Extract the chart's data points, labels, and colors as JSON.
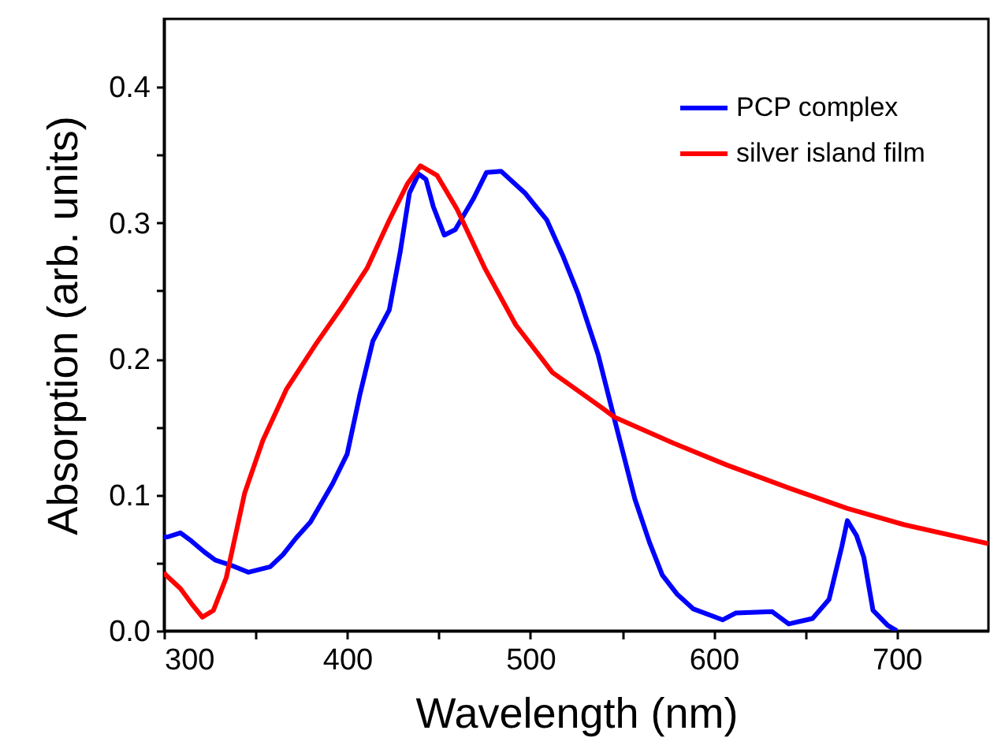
{
  "chart_data": {
    "type": "line",
    "xlabel": "Wavelength (nm)",
    "ylabel": "Absorption (arb. units)",
    "xlim": [
      300,
      750
    ],
    "ylim": [
      0,
      0.45
    ],
    "xticks": [
      300,
      {
        "value": 350,
        "label": null
      },
      400,
      {
        "value": 450,
        "label": null
      },
      500,
      {
        "value": 550,
        "label": null
      },
      600,
      {
        "value": 650,
        "label": null
      },
      700
    ],
    "yticks": [
      {
        "value": 0,
        "label": "0.0"
      },
      {
        "value": 0.05,
        "label": null
      },
      0.1,
      {
        "value": 0.15,
        "label": null
      },
      0.2,
      {
        "value": 0.25,
        "label": null
      },
      0.3,
      {
        "value": 0.35,
        "label": null
      },
      0.4
    ],
    "grid": false,
    "legend": "top right",
    "marker": "none",
    "line_style": "solid",
    "series": [
      {
        "name": "PCP complex",
        "color": "#0000ff",
        "x": [
          300,
          302,
          309,
          315,
          322,
          328,
          337,
          346,
          358,
          365,
          372,
          380,
          392,
          400,
          407,
          414,
          423,
          429,
          434,
          439,
          443,
          447,
          453,
          459,
          469,
          476,
          484,
          497,
          509,
          518,
          526,
          537,
          546,
          557,
          565,
          572,
          580,
          589,
          605,
          612,
          632,
          641,
          654,
          663,
          670,
          673,
          678,
          682,
          687,
          695,
          700
        ],
        "values": [
          0.069,
          0.069,
          0.072,
          0.066,
          0.058,
          0.052,
          0.048,
          0.043,
          0.047,
          0.056,
          0.068,
          0.08,
          0.108,
          0.13,
          0.174,
          0.213,
          0.236,
          0.279,
          0.322,
          0.336,
          0.332,
          0.312,
          0.291,
          0.295,
          0.318,
          0.337,
          0.338,
          0.322,
          0.302,
          0.275,
          0.248,
          0.203,
          0.155,
          0.097,
          0.065,
          0.041,
          0.027,
          0.016,
          0.008,
          0.013,
          0.014,
          0.005,
          0.009,
          0.023,
          0.062,
          0.081,
          0.07,
          0.054,
          0.015,
          0.004,
          0.0
        ]
      },
      {
        "name": "silver island film",
        "color": "#ff0000",
        "x": [
          300,
          301,
          309,
          315,
          321,
          327,
          334,
          344,
          354,
          367,
          383,
          397,
          411,
          423,
          433,
          440,
          449,
          460,
          475,
          492,
          512,
          538,
          546,
          578,
          607,
          641,
          673,
          704,
          750
        ],
        "values": [
          0.043,
          0.041,
          0.031,
          0.02,
          0.01,
          0.015,
          0.039,
          0.101,
          0.14,
          0.178,
          0.211,
          0.238,
          0.267,
          0.302,
          0.329,
          0.342,
          0.335,
          0.31,
          0.267,
          0.225,
          0.19,
          0.165,
          0.157,
          0.138,
          0.122,
          0.105,
          0.09,
          0.078,
          0.064
        ]
      }
    ]
  }
}
